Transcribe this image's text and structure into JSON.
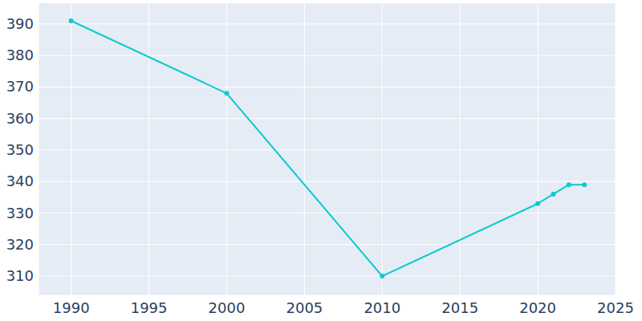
{
  "chart_data": {
    "type": "line",
    "x": [
      1990,
      2000,
      2010,
      2020,
      2021,
      2022,
      2023
    ],
    "values": [
      391,
      368,
      310,
      333,
      336,
      339,
      339
    ],
    "color": "#0bc9cd",
    "marker": "circle",
    "xlim": [
      1987.9,
      2025
    ],
    "ylim": [
      303.9,
      396.6
    ],
    "xticks": [
      1990,
      1995,
      2000,
      2005,
      2010,
      2015,
      2020,
      2025
    ],
    "yticks": [
      310,
      320,
      330,
      340,
      350,
      360,
      370,
      380,
      390
    ],
    "grid": true
  }
}
